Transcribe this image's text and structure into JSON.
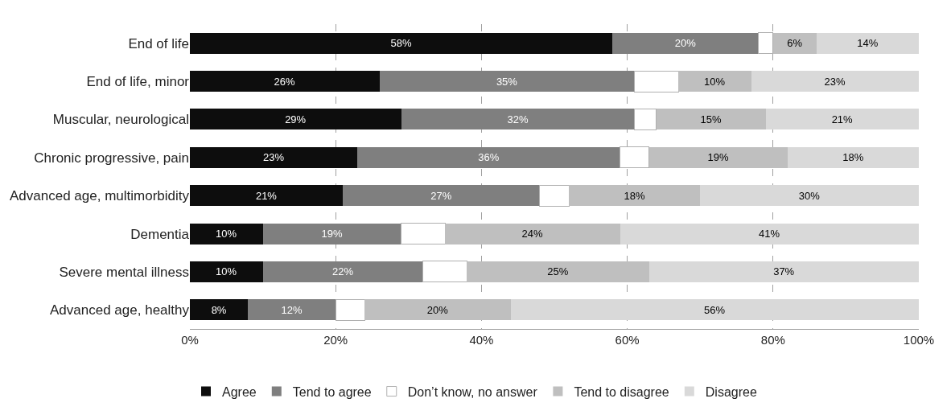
{
  "chart_data": {
    "type": "bar",
    "orientation": "horizontal",
    "stacked": true,
    "categories": [
      "End of life",
      "End of life, minor",
      "Muscular, neurological",
      "Chronic progressive, pain",
      "Advanced age, multimorbidity",
      "Dementia",
      "Severe mental illness",
      "Advanced age, healthy"
    ],
    "series": [
      {
        "name": "Agree",
        "color": "#0d0d0d",
        "values": [
          58,
          26,
          29,
          23,
          21,
          10,
          10,
          8
        ],
        "value_labels": [
          "58%",
          "26%",
          "29%",
          "23%",
          "21%",
          "10%",
          "10%",
          "8%"
        ]
      },
      {
        "name": "Tend to agree",
        "color": "#7f7f7f",
        "values": [
          20,
          35,
          32,
          36,
          27,
          19,
          22,
          12
        ],
        "value_labels": [
          "20%",
          "35%",
          "32%",
          "36%",
          "27%",
          "19%",
          "22%",
          "12%"
        ]
      },
      {
        "name": "Don’t know, no answer",
        "color": "#ffffff",
        "values": [
          2,
          6,
          3,
          4,
          4,
          6,
          6,
          4
        ]
      },
      {
        "name": "Tend to disagree",
        "color": "#bfbfbf",
        "values": [
          6,
          10,
          15,
          19,
          18,
          24,
          25,
          20
        ],
        "value_labels": [
          "6%",
          "10%",
          "15%",
          "19%",
          "18%",
          "24%",
          "25%",
          "20%"
        ]
      },
      {
        "name": "Disagree",
        "color": "#d9d9d9",
        "values": [
          14,
          23,
          21,
          18,
          30,
          41,
          37,
          56
        ],
        "value_labels": [
          "14%",
          "23%",
          "21%",
          "18%",
          "30%",
          "41%",
          "37%",
          "56%"
        ]
      }
    ],
    "xlim": [
      0,
      100
    ],
    "xticks": [
      {
        "value": 0,
        "label": "0%"
      },
      {
        "value": 20,
        "label": "20%"
      },
      {
        "value": 40,
        "label": "40%"
      },
      {
        "value": 60,
        "label": "60%"
      },
      {
        "value": 80,
        "label": "80%"
      },
      {
        "value": 100,
        "label": "100%"
      }
    ],
    "grid": "x",
    "legend": "bottom"
  }
}
